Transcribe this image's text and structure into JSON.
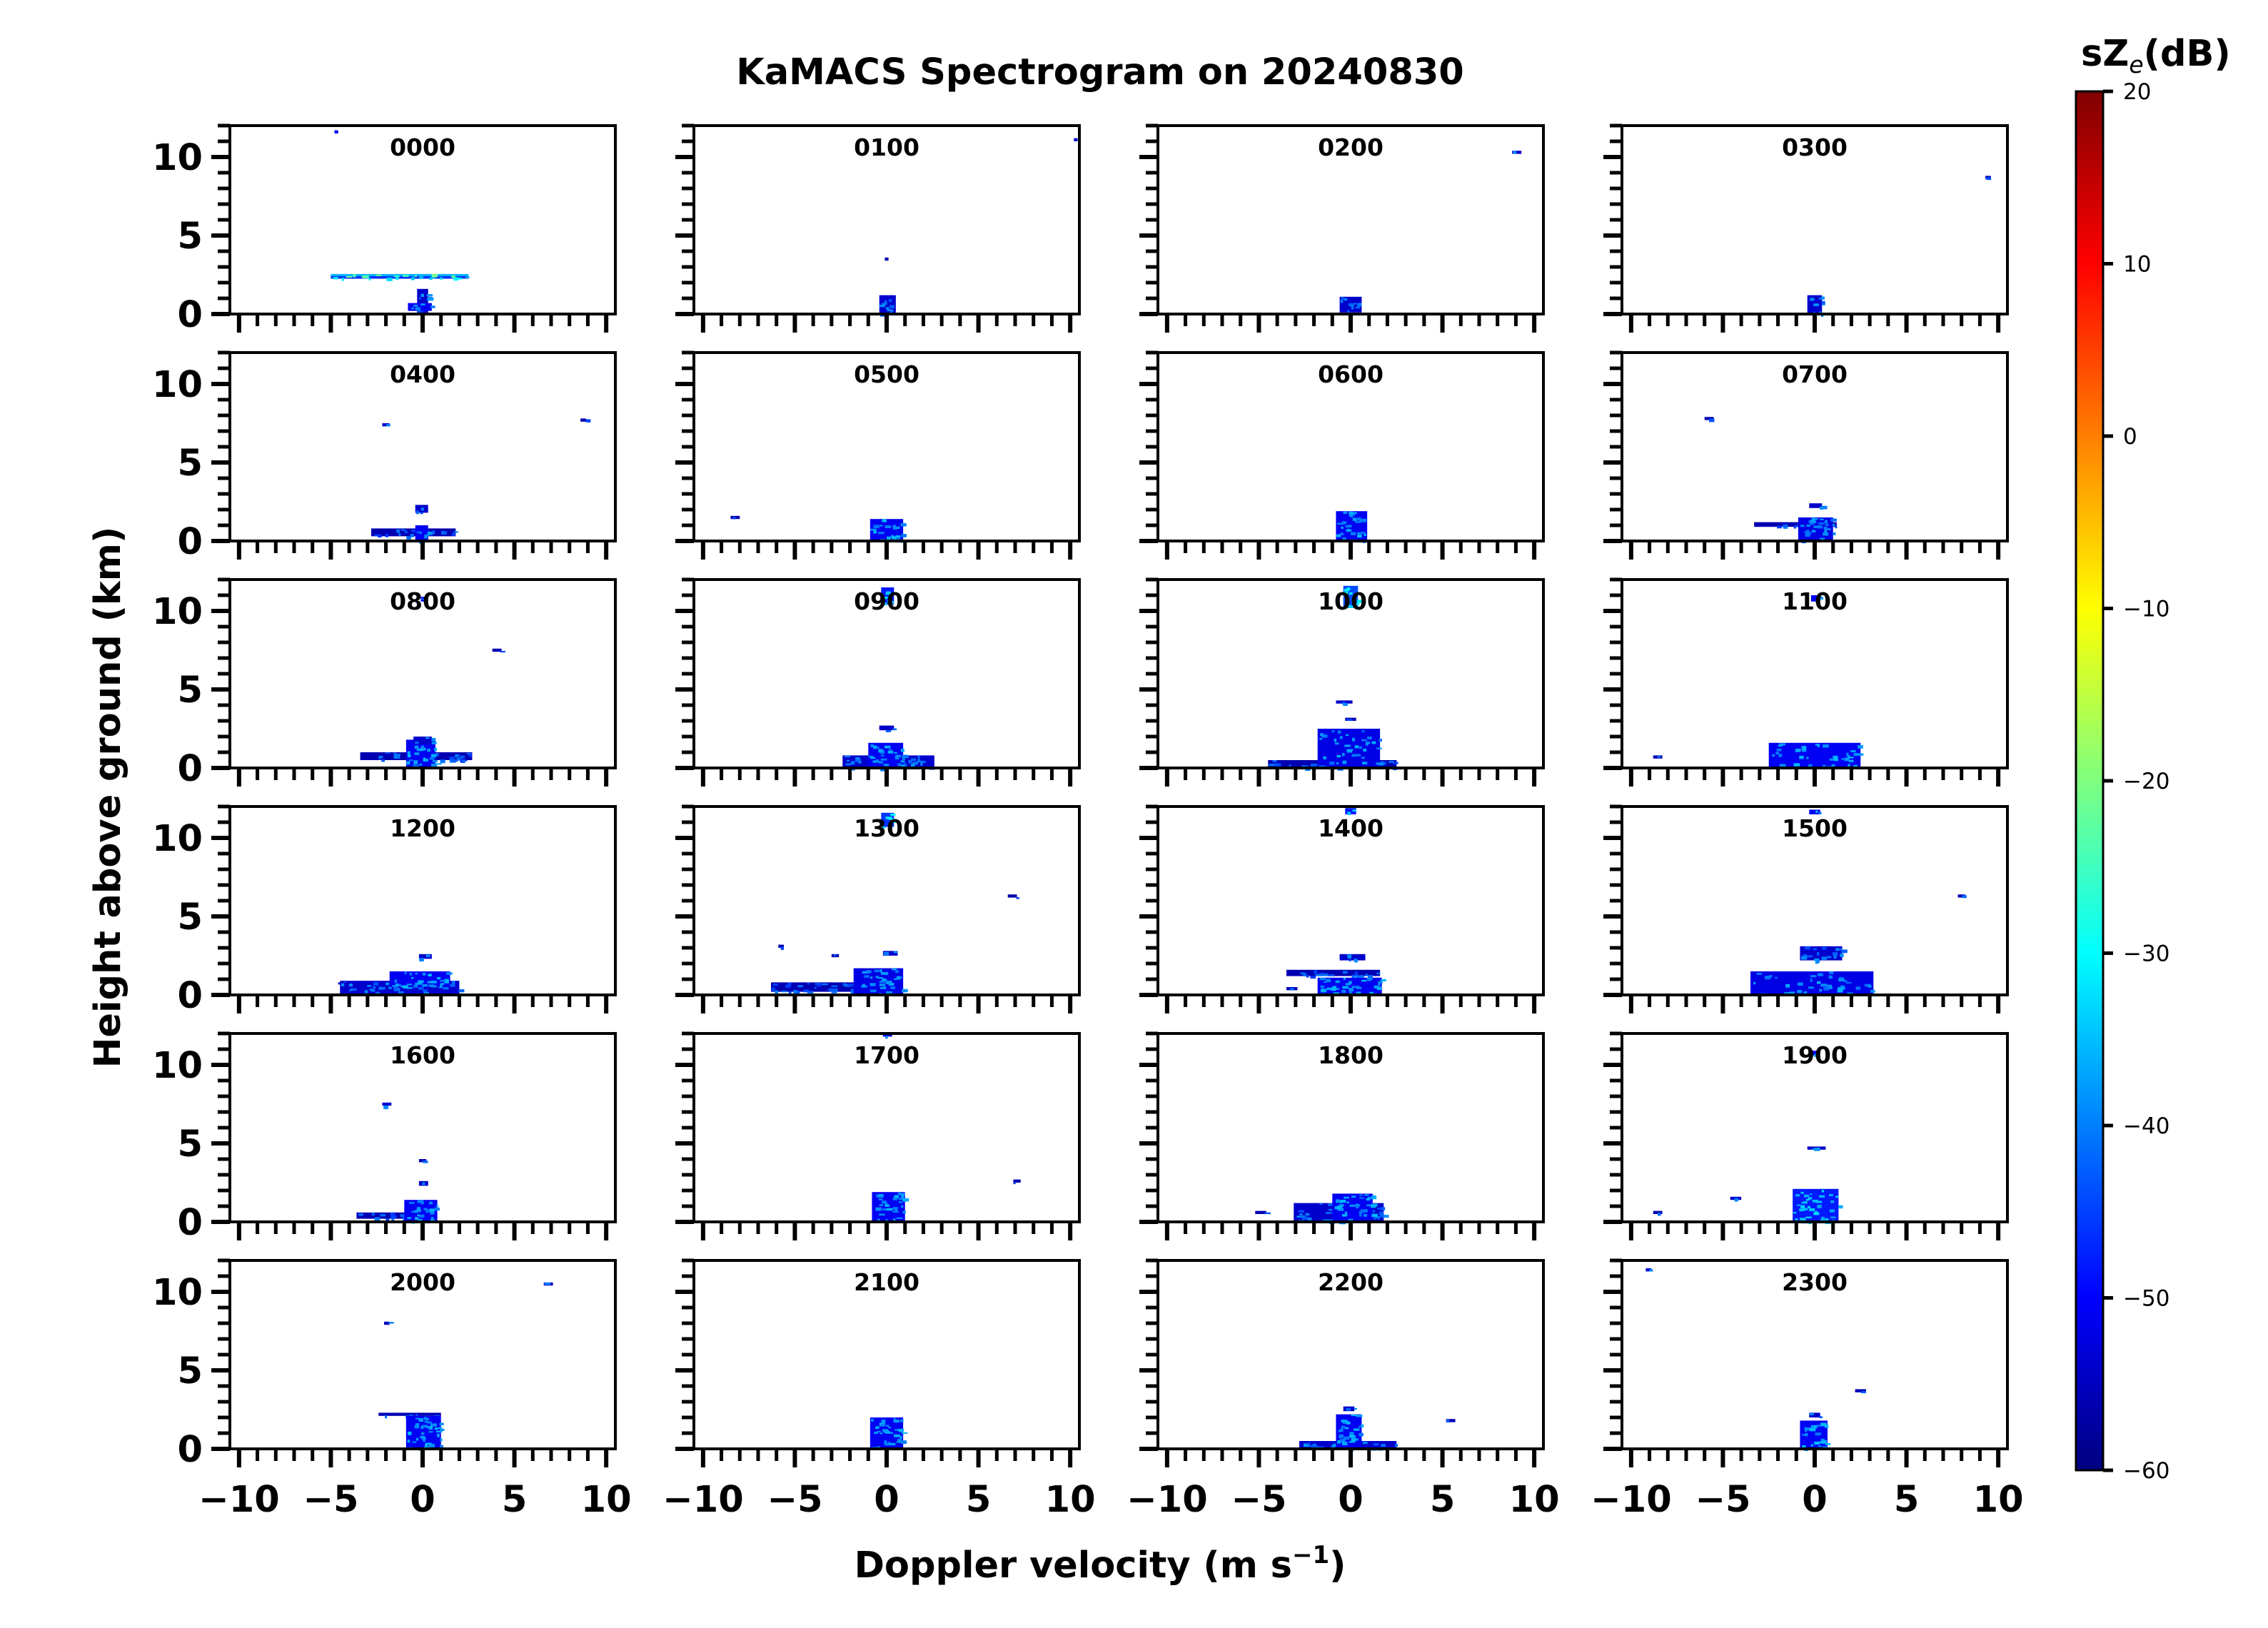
{
  "chart_data": {
    "type": "heatmap",
    "title": "KaMACS Spectrogram on 20240830",
    "xlabel": "Doppler velocity (m s",
    "xlabel_sup": "−1",
    "xlabel_end": ")",
    "ylabel": "Height above ground (km)",
    "xlim": [
      -10.5,
      10.5
    ],
    "ylim": [
      0,
      12
    ],
    "xticks": [
      -10,
      -5,
      0,
      5,
      10
    ],
    "xtick_labels": [
      "−10",
      "−5",
      "0",
      "5",
      "10"
    ],
    "yticks": [
      0,
      5,
      10
    ],
    "ytick_labels": [
      "0",
      "5",
      "10"
    ],
    "colorbar": {
      "label_main": "sZ",
      "label_sub": "e",
      "label_end": "(dB)",
      "min": -60,
      "max": 20,
      "ticks": [
        20,
        10,
        0,
        -10,
        -20,
        -30,
        -40,
        -50,
        -60
      ],
      "tick_labels": [
        "20",
        "10",
        "0",
        "−10",
        "−20",
        "−30",
        "−40",
        "−50",
        "−60"
      ],
      "colormap": [
        "#00007f",
        "#0000ff",
        "#007fff",
        "#00ffff",
        "#7fff7f",
        "#ffff00",
        "#ff7f00",
        "#ff0000",
        "#7f0000"
      ]
    },
    "panels": [
      {
        "label": "0000",
        "features": [
          [
            -0.3,
            0.3,
            0,
            1.6,
            -48
          ],
          [
            -0.8,
            0.5,
            0.2,
            0.7,
            -45
          ],
          [
            -5,
            2.5,
            2.25,
            2.45,
            -40
          ],
          [
            -5,
            2.5,
            2.45,
            2.55,
            -30
          ],
          [
            -4.8,
            -4.6,
            11.5,
            11.7,
            -45
          ]
        ]
      },
      {
        "label": "0100",
        "features": [
          [
            -0.4,
            0.5,
            0,
            1.2,
            -48
          ],
          [
            -0.1,
            0.1,
            3.4,
            3.6,
            -50
          ],
          [
            10.2,
            10.4,
            11.0,
            11.2,
            -48
          ]
        ]
      },
      {
        "label": "0200",
        "features": [
          [
            -0.6,
            0.6,
            0.1,
            1.1,
            -48
          ],
          [
            8.8,
            9.3,
            10.2,
            10.4,
            -48
          ]
        ]
      },
      {
        "label": "0300",
        "features": [
          [
            -0.4,
            0.4,
            0,
            1.2,
            -48
          ],
          [
            9.3,
            9.6,
            8.6,
            8.8,
            -50
          ]
        ]
      },
      {
        "label": "0400",
        "features": [
          [
            -2.8,
            1.8,
            0.3,
            0.8,
            -50
          ],
          [
            -0.4,
            0.3,
            0,
            1.0,
            -45
          ],
          [
            -0.4,
            0.3,
            1.8,
            2.3,
            -48
          ],
          [
            -2.2,
            -1.8,
            7.3,
            7.5,
            -48
          ],
          [
            8.6,
            8.9,
            7.6,
            7.8,
            -50
          ]
        ]
      },
      {
        "label": "0500",
        "features": [
          [
            -0.9,
            0.9,
            0,
            1.4,
            -45
          ],
          [
            -8.5,
            -8,
            1.4,
            1.6,
            -50
          ]
        ]
      },
      {
        "label": "0600",
        "features": [
          [
            -0.8,
            0.9,
            0,
            1.9,
            -45
          ]
        ]
      },
      {
        "label": "0700",
        "features": [
          [
            -3.3,
            1.2,
            0.9,
            1.2,
            -50
          ],
          [
            -0.9,
            1.0,
            0,
            1.5,
            -46
          ],
          [
            -0.3,
            0.4,
            2.1,
            2.4,
            -48
          ],
          [
            -6,
            -5.5,
            7.7,
            7.9,
            -50
          ]
        ]
      },
      {
        "label": "0800",
        "features": [
          [
            -3.4,
            2.7,
            0.5,
            1.0,
            -50
          ],
          [
            -0.9,
            0.7,
            0,
            1.8,
            -45
          ],
          [
            -0.5,
            0.5,
            1.5,
            2.0,
            -48
          ],
          [
            -0.1,
            0.2,
            10.6,
            10.9,
            -45
          ],
          [
            3.8,
            4.3,
            7.4,
            7.6,
            -50
          ]
        ]
      },
      {
        "label": "0900",
        "features": [
          [
            -2.4,
            2.6,
            0,
            0.8,
            -48
          ],
          [
            -1,
            0.9,
            0,
            1.6,
            -45
          ],
          [
            -0.4,
            0.4,
            2.4,
            2.7,
            -48
          ],
          [
            -0.3,
            0.4,
            10.4,
            11.5,
            -42
          ]
        ]
      },
      {
        "label": "1000",
        "features": [
          [
            -4.5,
            2.5,
            0,
            0.5,
            -50
          ],
          [
            -1.8,
            1.6,
            0,
            2.5,
            -46
          ],
          [
            -0.8,
            0.1,
            4.1,
            4.3,
            -48
          ],
          [
            -0.3,
            0.3,
            3.0,
            3.2,
            -50
          ],
          [
            -0.4,
            0.4,
            10.2,
            11.6,
            -38
          ]
        ]
      },
      {
        "label": "1100",
        "features": [
          [
            -2.5,
            2.5,
            0,
            1.6,
            -45
          ],
          [
            -8.8,
            -8.3,
            0.6,
            0.8,
            -50
          ],
          [
            -0.2,
            0.3,
            10.6,
            11.0,
            -45
          ]
        ]
      },
      {
        "label": "1200",
        "features": [
          [
            -4.5,
            2.0,
            0,
            0.9,
            -48
          ],
          [
            -1.8,
            1.5,
            0.5,
            1.5,
            -45
          ],
          [
            -0.2,
            0.5,
            2.3,
            2.6,
            -48
          ],
          [
            -4.6,
            -4,
            0.7,
            0.8,
            -48
          ]
        ]
      },
      {
        "label": "1300",
        "features": [
          [
            -6.3,
            0.7,
            0.2,
            0.8,
            -50
          ],
          [
            -1.8,
            0.9,
            0,
            1.7,
            -46
          ],
          [
            -0.3,
            0.4,
            10.7,
            11.6,
            -40
          ],
          [
            -5.9,
            -5.6,
            3.0,
            3.2,
            -50
          ],
          [
            -3.0,
            -2.6,
            2.4,
            2.6,
            -50
          ],
          [
            6.6,
            7.1,
            6.2,
            6.4,
            -50
          ],
          [
            -0.2,
            0.6,
            2.5,
            2.8,
            -48
          ]
        ]
      },
      {
        "label": "1400",
        "features": [
          [
            -3.5,
            1.6,
            1.2,
            1.6,
            -50
          ],
          [
            -1.8,
            1.7,
            0,
            1.1,
            -45
          ],
          [
            -0.6,
            0.8,
            2.2,
            2.6,
            -48
          ],
          [
            -3.5,
            -2.9,
            0.3,
            0.5,
            -50
          ],
          [
            -0.3,
            0.3,
            11.5,
            11.9,
            -42
          ]
        ]
      },
      {
        "label": "1500",
        "features": [
          [
            -3.5,
            3.2,
            0,
            1.5,
            -46
          ],
          [
            -0.8,
            1.5,
            2.2,
            3.1,
            -48
          ],
          [
            -0.3,
            0.3,
            11.5,
            11.8,
            -45
          ],
          [
            7.8,
            8.2,
            6.2,
            6.4,
            -50
          ]
        ]
      },
      {
        "label": "1600",
        "features": [
          [
            -3.6,
            0.8,
            0.2,
            0.6,
            -50
          ],
          [
            -1.0,
            0.8,
            0,
            1.4,
            -45
          ],
          [
            -0.2,
            0.3,
            2.3,
            2.6,
            -48
          ],
          [
            -0.2,
            0.2,
            3.8,
            4.0,
            -50
          ],
          [
            -2.2,
            -1.7,
            7.4,
            7.6,
            -48
          ]
        ]
      },
      {
        "label": "1700",
        "features": [
          [
            -0.8,
            1.0,
            0,
            1.9,
            -45
          ],
          [
            6.9,
            7.3,
            2.5,
            2.7,
            -50
          ],
          [
            -0.2,
            0.3,
            11.8,
            12.0,
            -45
          ]
        ]
      },
      {
        "label": "1800",
        "features": [
          [
            -3.1,
            1.8,
            0,
            1.2,
            -48
          ],
          [
            -1.0,
            1.2,
            0,
            1.8,
            -45
          ],
          [
            -5.2,
            -4.6,
            0.5,
            0.7,
            -50
          ]
        ]
      },
      {
        "label": "1900",
        "features": [
          [
            -1.2,
            1.3,
            0,
            2.1,
            -42
          ],
          [
            -0.4,
            0.6,
            4.6,
            4.8,
            -48
          ],
          [
            -4.6,
            -4,
            1.4,
            1.6,
            -48
          ],
          [
            -8.8,
            -8.3,
            0.5,
            0.7,
            -50
          ],
          [
            -0.2,
            0.2,
            10.6,
            10.9,
            -45
          ]
        ]
      },
      {
        "label": "2000",
        "features": [
          [
            -2.4,
            1.0,
            2.1,
            2.3,
            -50
          ],
          [
            -0.9,
            1.0,
            0,
            2.1,
            -45
          ],
          [
            -2.1,
            -1.8,
            7.9,
            8.1,
            -50
          ],
          [
            6.6,
            7.1,
            10.4,
            10.6,
            -48
          ]
        ]
      },
      {
        "label": "2100",
        "features": [
          [
            -0.9,
            0.9,
            0,
            2.0,
            -45
          ]
        ]
      },
      {
        "label": "2200",
        "features": [
          [
            -2.8,
            2.5,
            0,
            0.5,
            -48
          ],
          [
            -0.8,
            0.6,
            0,
            2.2,
            -45
          ],
          [
            -0.4,
            0.2,
            2.4,
            2.7,
            -48
          ],
          [
            5.2,
            5.7,
            1.7,
            1.9,
            -50
          ]
        ]
      },
      {
        "label": "2300",
        "features": [
          [
            -0.8,
            0.7,
            0,
            1.8,
            -45
          ],
          [
            -0.3,
            0.3,
            2.0,
            2.3,
            -48
          ],
          [
            2.2,
            2.8,
            3.6,
            3.8,
            -50
          ],
          [
            -9.2,
            -8.9,
            11.3,
            11.5,
            -48
          ]
        ]
      }
    ]
  }
}
